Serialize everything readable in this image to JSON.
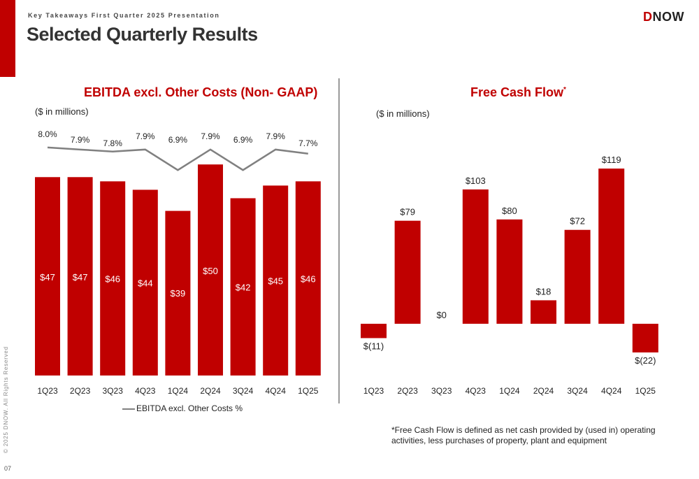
{
  "header": {
    "subtitle": "Key Takeaways First Quarter 2025 Presentation",
    "title": "Selected Quarterly Results",
    "logo_d": "D",
    "logo_rest": "NOW"
  },
  "side": {
    "copyright": "© 2025 DNOW. All Rights Reserved",
    "page_number": "07"
  },
  "colors": {
    "accent": "#c00000",
    "line": "#808080"
  },
  "chart_data": [
    {
      "type": "bar",
      "title": "EBITDA excl. Other Costs (Non- GAAP)",
      "units": "($ in millions)",
      "categories": [
        "1Q23",
        "2Q23",
        "3Q23",
        "4Q23",
        "1Q24",
        "2Q24",
        "3Q24",
        "4Q24",
        "1Q25"
      ],
      "values": [
        47,
        47,
        46,
        44,
        39,
        50,
        42,
        45,
        46
      ],
      "value_labels": [
        "$47",
        "$47",
        "$46",
        "$44",
        "$39",
        "$50",
        "$42",
        "$45",
        "$46"
      ],
      "ylim": [
        0,
        55
      ],
      "line_series": {
        "name": "EBITDA excl. Other Costs  %",
        "values": [
          8.0,
          7.9,
          7.8,
          7.9,
          6.9,
          7.9,
          6.9,
          7.9,
          7.7
        ],
        "labels": [
          "8.0%",
          "7.9%",
          "7.8%",
          "7.9%",
          "6.9%",
          "7.9%",
          "6.9%",
          "7.9%",
          "7.7%"
        ]
      },
      "legend_position": "bottom",
      "grid": false
    },
    {
      "type": "bar",
      "title": "Free Cash Flow",
      "title_mark": "*",
      "units": "($ in millions)",
      "categories": [
        "1Q23",
        "2Q23",
        "3Q23",
        "4Q23",
        "1Q24",
        "2Q24",
        "3Q24",
        "4Q24",
        "1Q25"
      ],
      "values": [
        -11,
        79,
        0,
        103,
        80,
        18,
        72,
        119,
        -22
      ],
      "value_labels": [
        "$(11)",
        "$79",
        "$0",
        "$103",
        "$80",
        "$18",
        "$72",
        "$119",
        "$(22)"
      ],
      "ylim": [
        -30,
        130
      ],
      "grid": false,
      "footnote": "*Free Cash Flow is defined as net cash provided by (used in) operating activities, less purchases of property, plant and equipment"
    }
  ]
}
